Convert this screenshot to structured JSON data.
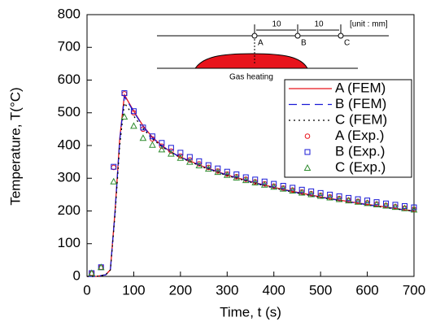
{
  "chart_data": {
    "type": "line",
    "xlabel": "Time, t (s)",
    "ylabel": "Temperature, T(°C)",
    "xlim": [
      0,
      700
    ],
    "ylim": [
      0,
      800
    ],
    "xticks": [
      0,
      100,
      200,
      300,
      400,
      500,
      600,
      700
    ],
    "yticks": [
      0,
      100,
      200,
      300,
      400,
      500,
      600,
      700,
      800
    ],
    "legend": "upper right",
    "annotations": [
      "10",
      "10",
      "[unit : mm]",
      "A",
      "B",
      "C",
      "Gas heating"
    ],
    "series": [
      {
        "name": "A (FEM)",
        "color": "#e8141c",
        "kind": "line",
        "dash": "solid",
        "x": [
          0,
          20,
          40,
          50,
          60,
          70,
          80,
          90,
          100,
          120,
          140,
          160,
          180,
          200,
          250,
          300,
          350,
          400,
          450,
          500,
          550,
          600,
          650,
          700
        ],
        "values": [
          0,
          0,
          5,
          20,
          200,
          420,
          555,
          530,
          505,
          460,
          425,
          400,
          380,
          365,
          335,
          310,
          290,
          272,
          257,
          243,
          231,
          220,
          210,
          200
        ]
      },
      {
        "name": "B (FEM)",
        "color": "#1a1ad6",
        "kind": "line",
        "dash": "dashed",
        "x": [
          0,
          20,
          40,
          50,
          60,
          70,
          80,
          90,
          100,
          120,
          140,
          160,
          180,
          200,
          250,
          300,
          350,
          400,
          450,
          500,
          550,
          600,
          650,
          700
        ],
        "values": [
          0,
          0,
          5,
          20,
          198,
          415,
          550,
          527,
          503,
          458,
          424,
          399,
          380,
          364,
          334,
          309,
          289,
          271,
          256,
          242,
          230,
          219,
          209,
          199
        ]
      },
      {
        "name": "C (FEM)",
        "color": "#000000",
        "kind": "line",
        "dash": "dotted",
        "x": [
          0,
          20,
          40,
          50,
          60,
          70,
          80,
          90,
          100,
          120,
          140,
          160,
          180,
          200,
          250,
          300,
          350,
          400,
          450,
          500,
          550,
          600,
          650,
          700
        ],
        "values": [
          0,
          0,
          5,
          20,
          190,
          400,
          530,
          510,
          490,
          452,
          420,
          397,
          378,
          363,
          333,
          308,
          288,
          270,
          255,
          241,
          229,
          218,
          208,
          199
        ]
      },
      {
        "name": "A (Exp.)",
        "color": "#e8141c",
        "kind": "marker",
        "marker": "circle",
        "x": [
          10,
          30,
          57,
          80,
          100,
          120,
          140,
          160,
          180,
          200,
          220,
          240,
          260,
          280,
          300,
          320,
          340,
          360,
          380,
          400,
          420,
          440,
          460,
          480,
          500,
          520,
          540,
          560,
          580,
          600,
          620,
          640,
          660,
          680,
          700
        ],
        "values": [
          10,
          28,
          333,
          558,
          500,
          450,
          420,
          398,
          383,
          368,
          356,
          344,
          333,
          322,
          313,
          305,
          297,
          289,
          283,
          276,
          270,
          264,
          258,
          253,
          248,
          243,
          238,
          233,
          229,
          225,
          221,
          217,
          213,
          209,
          205
        ]
      },
      {
        "name": "B (Exp.)",
        "color": "#1a1ad6",
        "kind": "marker",
        "marker": "square",
        "x": [
          10,
          30,
          57,
          80,
          100,
          120,
          140,
          160,
          180,
          200,
          220,
          240,
          260,
          280,
          300,
          320,
          340,
          360,
          380,
          400,
          420,
          440,
          460,
          480,
          500,
          520,
          540,
          560,
          580,
          600,
          620,
          640,
          660,
          680,
          700
        ],
        "values": [
          10,
          28,
          335,
          560,
          505,
          455,
          428,
          408,
          393,
          378,
          365,
          352,
          340,
          330,
          320,
          312,
          303,
          296,
          290,
          283,
          277,
          271,
          265,
          260,
          255,
          250,
          245,
          240,
          236,
          232,
          227,
          223,
          219,
          215,
          211
        ]
      },
      {
        "name": "C (Exp.)",
        "color": "#2e8b2e",
        "kind": "marker",
        "marker": "triangle",
        "x": [
          10,
          30,
          57,
          80,
          100,
          120,
          140,
          160,
          180,
          200,
          220,
          240,
          260,
          280,
          300,
          320,
          340,
          360,
          380,
          400,
          420,
          440,
          460,
          480,
          500,
          520,
          540,
          560,
          580,
          600,
          620,
          640,
          660,
          680,
          700
        ],
        "values": [
          10,
          28,
          290,
          488,
          460,
          423,
          402,
          388,
          375,
          362,
          350,
          339,
          329,
          319,
          310,
          302,
          294,
          287,
          280,
          274,
          268,
          262,
          256,
          251,
          246,
          241,
          236,
          232,
          228,
          224,
          220,
          216,
          212,
          208,
          204
        ]
      }
    ]
  }
}
